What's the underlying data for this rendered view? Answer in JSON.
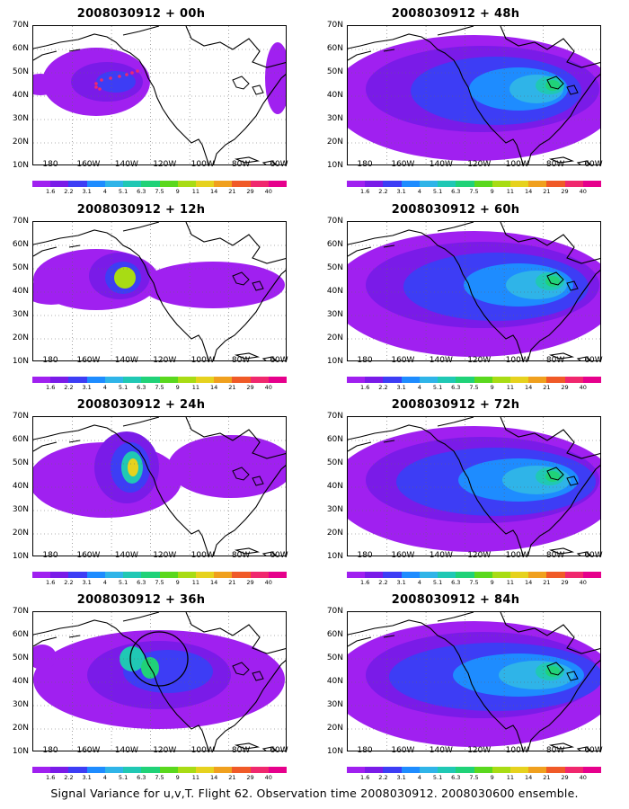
{
  "panels": [
    {
      "title": "2008030912 + 00h",
      "level": 0,
      "has_track": true,
      "has_circle": false
    },
    {
      "title": "2008030912 + 48h",
      "level": 4,
      "has_track": false,
      "has_circle": false
    },
    {
      "title": "2008030912 + 12h",
      "level": 1,
      "has_track": false,
      "has_circle": false
    },
    {
      "title": "2008030912 + 60h",
      "level": 5,
      "has_track": false,
      "has_circle": false
    },
    {
      "title": "2008030912 + 24h",
      "level": 2,
      "has_track": false,
      "has_circle": false
    },
    {
      "title": "2008030912 + 72h",
      "level": 6,
      "has_track": false,
      "has_circle": false
    },
    {
      "title": "2008030912 + 36h",
      "level": 3,
      "has_track": false,
      "has_circle": true
    },
    {
      "title": "2008030912 + 84h",
      "level": 7,
      "has_track": false,
      "has_circle": false
    }
  ],
  "y_axis_labels": [
    "70N",
    "60N",
    "50N",
    "40N",
    "30N",
    "20N",
    "10N"
  ],
  "x_axis_labels": [
    "180",
    "160W",
    "140W",
    "120W",
    "100W",
    "80W",
    "60W"
  ],
  "colorbar": {
    "labels": [
      "1.6",
      "2.2",
      "3.1",
      "4",
      "5.1",
      "6.3",
      "7.5",
      "9",
      "11",
      "14",
      "21",
      "29",
      "40"
    ],
    "colors": [
      "#a020f0",
      "#7a1be8",
      "#3d3df5",
      "#1e8cff",
      "#2fb4e8",
      "#20c8b4",
      "#20d278",
      "#5ad81e",
      "#a8dc14",
      "#e6d21e",
      "#f0a01e",
      "#f05a28",
      "#f0286e",
      "#e6008c"
    ]
  },
  "caption": "Signal Variance for u,v,T. Flight 62. Observation time 2008030912. 2008030600 ensemble."
}
